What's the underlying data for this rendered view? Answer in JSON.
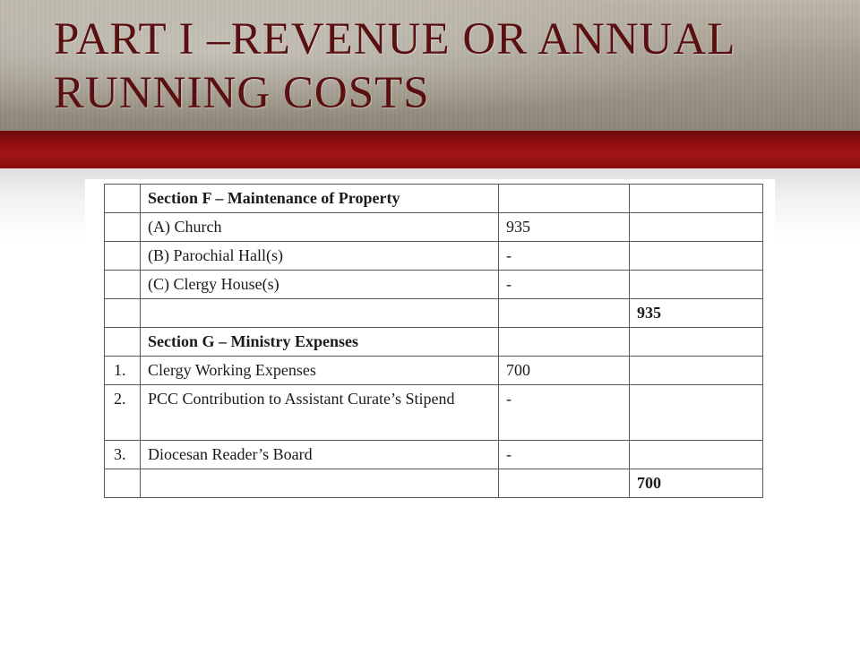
{
  "title": {
    "line1": "PART I –REVENUE OR ANNUAL",
    "line2": "RUNNING COSTS"
  },
  "colors": {
    "title_text": "#5a1010",
    "accent_band": "#930f0f",
    "title_band": "#a49d8f"
  },
  "table": {
    "rows": [
      {
        "num": "",
        "desc": "Section F – Maintenance of Property",
        "amount": "",
        "total": "",
        "heading": true
      },
      {
        "num": "",
        "desc": "(A) Church",
        "amount": "935",
        "total": ""
      },
      {
        "num": "",
        "desc": "(B) Parochial Hall(s)",
        "amount": "-",
        "total": ""
      },
      {
        "num": "",
        "desc": "(C) Clergy House(s)",
        "amount": "-",
        "total": ""
      },
      {
        "num": "",
        "desc": "",
        "amount": "",
        "total": "935",
        "total_bold": true
      },
      {
        "num": "",
        "desc": "Section G – Ministry Expenses",
        "amount": "",
        "total": "",
        "heading": true
      },
      {
        "num": "1.",
        "desc": "Clergy Working Expenses",
        "amount": "700",
        "total": ""
      },
      {
        "num": "2.",
        "desc": "PCC Contribution to Assistant Curate’s Stipend",
        "amount": "-",
        "total": ""
      },
      {
        "num": "3.",
        "desc": "Diocesan Reader’s Board",
        "amount": "-",
        "total": ""
      },
      {
        "num": "",
        "desc": "",
        "amount": "",
        "total": "700",
        "total_bold": true
      }
    ]
  }
}
